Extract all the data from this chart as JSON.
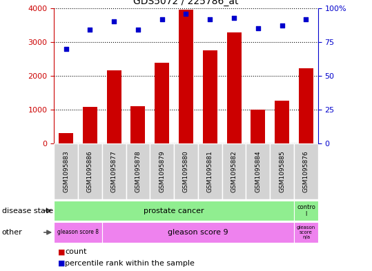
{
  "title": "GDS5072 / 225786_at",
  "samples": [
    "GSM1095883",
    "GSM1095886",
    "GSM1095877",
    "GSM1095878",
    "GSM1095879",
    "GSM1095880",
    "GSM1095881",
    "GSM1095882",
    "GSM1095884",
    "GSM1095885",
    "GSM1095876"
  ],
  "counts": [
    320,
    1080,
    2170,
    1100,
    2380,
    3950,
    2750,
    3280,
    1010,
    1260,
    2230
  ],
  "percentile_ranks": [
    70,
    84,
    90,
    84,
    92,
    96,
    92,
    93,
    85,
    87,
    92
  ],
  "bar_color": "#cc0000",
  "dot_color": "#0000cc",
  "left_axis_color": "#cc0000",
  "right_axis_color": "#0000cc",
  "ylim_left": [
    0,
    4000
  ],
  "ylim_right": [
    0,
    100
  ],
  "left_ticks": [
    0,
    1000,
    2000,
    3000,
    4000
  ],
  "right_ticks": [
    0,
    25,
    50,
    75,
    100
  ],
  "disease_state_labels": [
    {
      "text": "prostate cancer",
      "start": 0,
      "end": 9,
      "color": "#90ee90"
    },
    {
      "text": "contro\nl",
      "start": 10,
      "end": 10,
      "color": "#90ee90"
    }
  ],
  "other_labels": [
    {
      "text": "gleason score 8",
      "start": 0,
      "end": 1,
      "color": "#ee82ee"
    },
    {
      "text": "gleason score 9",
      "start": 2,
      "end": 9,
      "color": "#ee82ee"
    },
    {
      "text": "gleason\nscore\nn/a",
      "start": 10,
      "end": 10,
      "color": "#ee82ee"
    }
  ],
  "legend_items": [
    {
      "label": "count",
      "color": "#cc0000"
    },
    {
      "label": "percentile rank within the sample",
      "color": "#0000cc"
    }
  ],
  "tick_label_area_color": "#d3d3d3",
  "grid_color": "#000000"
}
